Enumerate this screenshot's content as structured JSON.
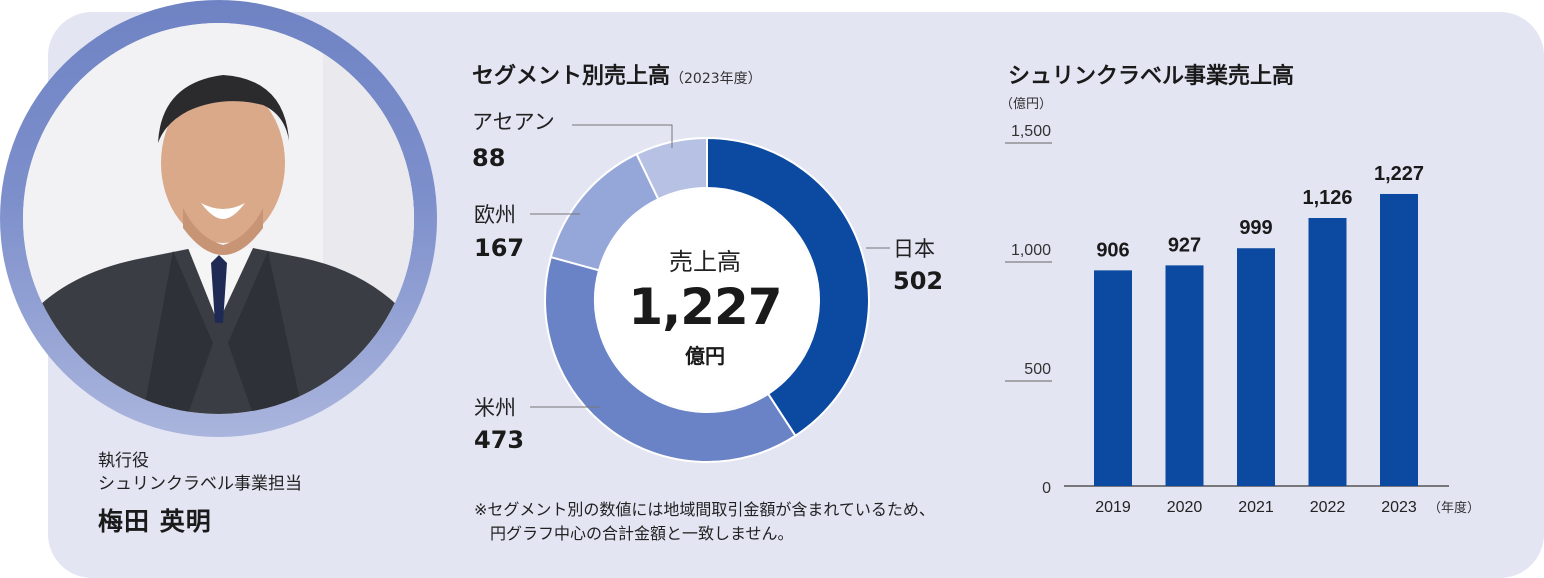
{
  "person": {
    "role_line1": "執行役",
    "role_line2": "シュリンクラベル事業担当",
    "name": "梅田 英明"
  },
  "segment_chart": {
    "title": "セグメント別売上高",
    "title_suffix": "（2023年度）",
    "center_label": "売上高",
    "center_value": "1,227",
    "center_unit": "億円",
    "note_line1": "※セグメント別の数値には地域間取引金額が含まれているため、",
    "note_line2": "円グラフ中心の合計金額と一致しません。"
  },
  "sales_chart": {
    "title": "シュリンクラベル事業売上高",
    "unit_label": "（億円）",
    "x_unit_label": "（年度）"
  },
  "colors": {
    "japan": "#0b4aa0",
    "americas": "#6a83c6",
    "europe": "#95a6d8",
    "asean": "#b7c1e4",
    "bar": "#0b4aa0",
    "panel": "#e3e5f3"
  },
  "chart_data": [
    {
      "type": "pie",
      "categories": [
        "日本",
        "米州",
        "欧州",
        "アセアン"
      ],
      "values": [
        502,
        473,
        167,
        88
      ],
      "value_labels": [
        "502",
        "473",
        "167",
        "88"
      ],
      "title": "セグメント別売上高"
    },
    {
      "type": "bar",
      "categories": [
        "2019",
        "2020",
        "2021",
        "2022",
        "2023"
      ],
      "values": [
        906,
        927,
        999,
        1126,
        1227
      ],
      "value_labels": [
        "906",
        "927",
        "999",
        "1,126",
        "1,227"
      ],
      "yticks": [
        0,
        500,
        1000,
        1500
      ],
      "ytick_labels": [
        "0",
        "500",
        "1,000",
        "1,500"
      ],
      "ylim": [
        0,
        1500
      ],
      "title": "シュリンクラベル事業売上高",
      "ylabel": "（億円）",
      "xlabel": "（年度）"
    }
  ]
}
